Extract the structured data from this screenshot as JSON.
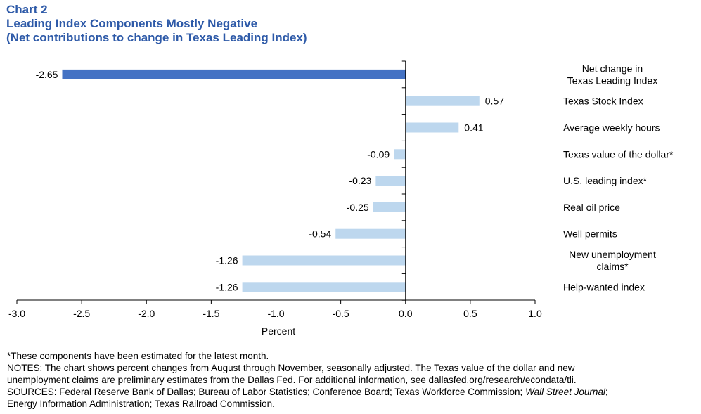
{
  "header": {
    "chart_number": "Chart 2",
    "title": "Leading Index Components Mostly Negative",
    "subtitle": "(Net contributions to change in Texas Leading Index)"
  },
  "chart_data": {
    "type": "bar",
    "orientation": "horizontal",
    "xlabel": "Percent",
    "xlim": [
      -3.0,
      1.0
    ],
    "ticks": [
      "-3.0",
      "-2.5",
      "-2.0",
      "-1.5",
      "-1.0",
      "-0.5",
      "0.0",
      "0.5",
      "1.0"
    ],
    "categories": [
      [
        "Net change in",
        "Texas Leading Index"
      ],
      [
        "Texas Stock Index"
      ],
      [
        "Average weekly hours"
      ],
      [
        "Texas value of the dollar*"
      ],
      [
        "U.S. leading index*"
      ],
      [
        "Real oil price"
      ],
      [
        "Well permits"
      ],
      [
        "New unemployment",
        "claims*"
      ],
      [
        "Help-wanted index"
      ]
    ],
    "values": [
      -2.65,
      0.57,
      0.41,
      -0.09,
      -0.23,
      -0.25,
      -0.54,
      -1.26,
      -1.26
    ],
    "value_labels": [
      "-2.65",
      "0.57",
      "0.41",
      "-0.09",
      "-0.23",
      "-0.25",
      "-0.54",
      "-1.26",
      "-1.26"
    ],
    "colors": {
      "highlight": "#4472c4",
      "bar": "#bdd7ee",
      "axis": "#000000"
    }
  },
  "notes": {
    "estimated": "*These components have been estimated for the latest month.",
    "notes_line1": "NOTES: The chart shows percent changes from August through November, seasonally adjusted. The Texas value of the dollar and new",
    "notes_line2": "unemployment claims are preliminary estimates from the Dallas Fed. For additional information, see dallasfed.org/research/econdata/tli.",
    "sources_prefix": "SOURCES: Federal Reserve Bank of Dallas; Bureau of Labor Statistics; Conference Board; Texas Workforce Commission; ",
    "sources_italic": "Wall Street Journal",
    "sources_suffix": ";",
    "sources_line2": "Energy Information Administration; Texas Railroad Commission."
  }
}
